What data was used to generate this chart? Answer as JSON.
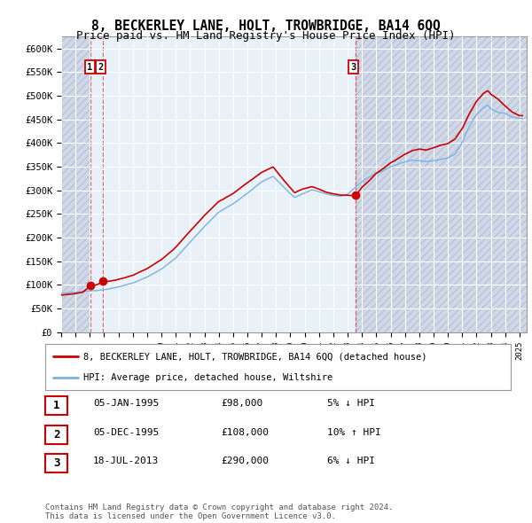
{
  "title": "8, BECKERLEY LANE, HOLT, TROWBRIDGE, BA14 6QQ",
  "subtitle": "Price paid vs. HM Land Registry's House Price Index (HPI)",
  "ylim": [
    0,
    625000
  ],
  "yticks": [
    0,
    50000,
    100000,
    150000,
    200000,
    250000,
    300000,
    350000,
    400000,
    450000,
    500000,
    550000,
    600000
  ],
  "ytick_labels": [
    "£0",
    "£50K",
    "£100K",
    "£150K",
    "£200K",
    "£250K",
    "£300K",
    "£350K",
    "£400K",
    "£450K",
    "£500K",
    "£550K",
    "£600K"
  ],
  "xlim_start": 1993.0,
  "xlim_end": 2025.5,
  "xtick_years": [
    1993,
    1994,
    1995,
    1996,
    1997,
    1998,
    1999,
    2000,
    2001,
    2002,
    2003,
    2004,
    2005,
    2006,
    2007,
    2008,
    2009,
    2010,
    2011,
    2012,
    2013,
    2014,
    2015,
    2016,
    2017,
    2018,
    2019,
    2020,
    2021,
    2022,
    2023,
    2024,
    2025
  ],
  "sale_dates": [
    1995.02,
    1995.92
  ],
  "sale_prices": [
    98000,
    108000
  ],
  "sale_date_3": 2013.54,
  "sale_price_3": 290000,
  "hpi_color": "#7ab3e0",
  "price_color": "#cc0000",
  "marker_color": "#cc0000",
  "hatch_color": "#d0d8e8",
  "light_blue_bg": "#e8f0f8",
  "grid_color": "#d0d8e8",
  "white_bg": "#ffffff",
  "legend_label_price": "8, BECKERLEY LANE, HOLT, TROWBRIDGE, BA14 6QQ (detached house)",
  "legend_label_hpi": "HPI: Average price, detached house, Wiltshire",
  "sale_labels": [
    "1",
    "2",
    "3"
  ],
  "table_rows": [
    {
      "num": "1",
      "date": "05-JAN-1995",
      "price": "£98,000",
      "pct": "5% ↓ HPI"
    },
    {
      "num": "2",
      "date": "05-DEC-1995",
      "price": "£108,000",
      "pct": "10% ↑ HPI"
    },
    {
      "num": "3",
      "date": "18-JUL-2013",
      "price": "£290,000",
      "pct": "6% ↓ HPI"
    }
  ],
  "footer": "Contains HM Land Registry data © Crown copyright and database right 2024.\nThis data is licensed under the Open Government Licence v3.0."
}
